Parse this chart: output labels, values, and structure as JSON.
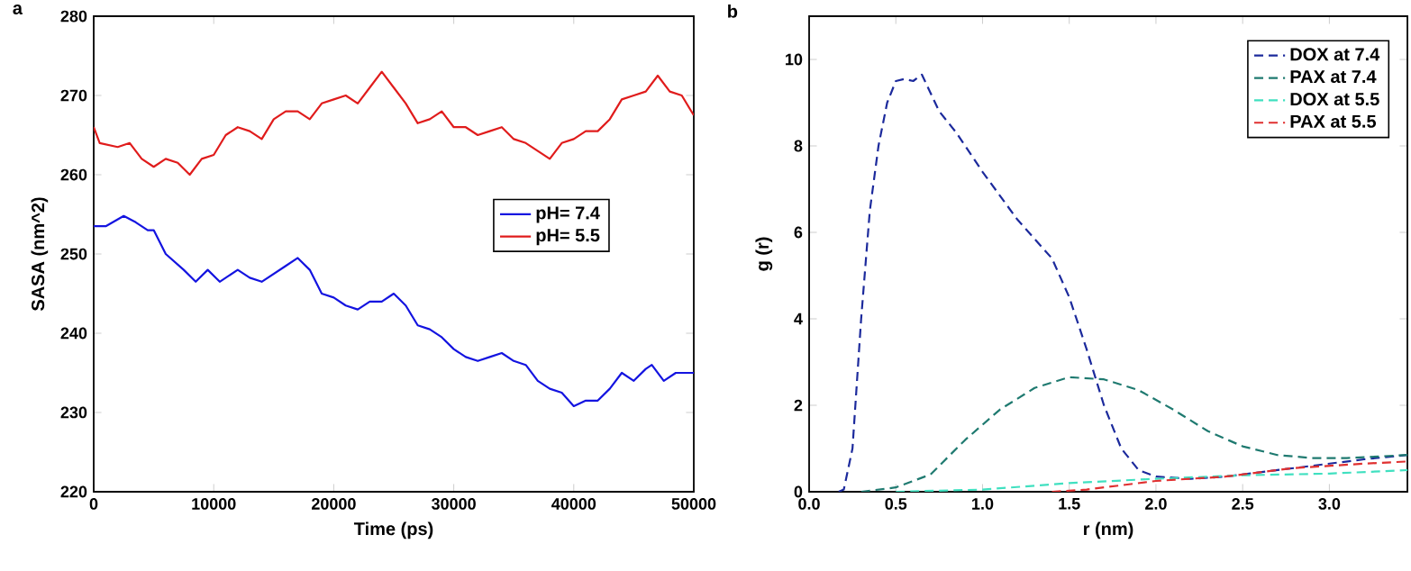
{
  "chart_data": [
    {
      "type": "line",
      "title": "a",
      "xlabel": "Time (ps)",
      "ylabel": "SASA (nm^2)",
      "xlim": [
        0,
        50000
      ],
      "ylim": [
        220,
        280
      ],
      "xticks": [
        0,
        10000,
        20000,
        30000,
        40000,
        50000
      ],
      "yticks": [
        220,
        230,
        240,
        250,
        260,
        270,
        280
      ],
      "legend": "right",
      "line_style": "solid",
      "series": [
        {
          "name": "pH= 7.4",
          "color": "#1414e0",
          "x": [
            0,
            1000,
            2500,
            3500,
            4500,
            5000,
            6000,
            7500,
            8500,
            9500,
            10500,
            12000,
            13000,
            14000,
            15000,
            16000,
            17000,
            18000,
            19000,
            20000,
            21000,
            22000,
            23000,
            24000,
            25000,
            26000,
            27000,
            28000,
            29000,
            30000,
            31000,
            32000,
            33000,
            34000,
            35000,
            36000,
            37000,
            38000,
            39000,
            40000,
            41000,
            42000,
            43000,
            44000,
            45000,
            46000,
            46500,
            47500,
            48500,
            49500,
            50000
          ],
          "values": [
            253.5,
            253.5,
            254.8,
            254,
            253,
            253,
            250,
            248,
            246.5,
            248,
            246.5,
            248,
            247,
            246.5,
            247.5,
            248.5,
            249.5,
            248,
            245,
            244.5,
            243.5,
            243,
            244,
            244,
            245,
            243.5,
            241,
            240.5,
            239.5,
            238,
            237,
            236.5,
            237,
            237.5,
            236.5,
            236,
            234,
            233,
            232.5,
            230.8,
            231.5,
            231.5,
            233,
            235,
            234,
            235.5,
            236,
            234,
            235,
            235,
            235
          ]
        },
        {
          "name": "pH= 5.5",
          "color": "#e01c1c",
          "x": [
            0,
            500,
            2000,
            3000,
            4000,
            5000,
            6000,
            7000,
            8000,
            9000,
            10000,
            11000,
            12000,
            13000,
            14000,
            15000,
            16000,
            17000,
            18000,
            19000,
            20000,
            21000,
            22000,
            23000,
            24000,
            25000,
            26000,
            27000,
            28000,
            29000,
            30000,
            31000,
            32000,
            33000,
            34000,
            35000,
            36000,
            37000,
            38000,
            39000,
            40000,
            41000,
            42000,
            43000,
            44000,
            45000,
            46000,
            47000,
            48000,
            49000,
            50000
          ],
          "values": [
            266,
            264,
            263.5,
            264,
            262,
            261,
            262,
            261.5,
            260,
            262,
            262.5,
            265,
            266,
            265.5,
            264.5,
            267,
            268,
            268,
            267,
            269,
            269.5,
            270,
            269,
            271,
            273,
            271,
            269,
            266.5,
            267,
            268,
            266,
            266,
            265,
            265.5,
            266,
            264.5,
            264,
            263,
            262,
            264,
            264.5,
            265.5,
            265.5,
            267,
            269.5,
            270,
            270.5,
            272.5,
            270.5,
            270,
            267.5
          ]
        }
      ]
    },
    {
      "type": "line",
      "title": "b",
      "xlabel": "r (nm)",
      "ylabel": "g (r)",
      "xlim": [
        0,
        3.45
      ],
      "ylim": [
        0,
        11
      ],
      "xticks": [
        {
          "value": 0,
          "label": "0.0"
        },
        {
          "value": 0.5,
          "label": "0.5"
        },
        {
          "value": 1,
          "label": "1.0"
        },
        {
          "value": 1.5,
          "label": "1.5"
        },
        {
          "value": 2,
          "label": "2.0"
        },
        {
          "value": 2.5,
          "label": "2.5"
        },
        {
          "value": 3,
          "label": "3.0"
        }
      ],
      "yticks": [
        0,
        2,
        4,
        6,
        8,
        10
      ],
      "legend": "top right",
      "line_style": "dashed",
      "series": [
        {
          "name": "DOX at 7.4",
          "color": "#1c2a9c",
          "x": [
            0.17,
            0.2,
            0.25,
            0.3,
            0.35,
            0.4,
            0.45,
            0.5,
            0.55,
            0.6,
            0.65,
            0.75,
            0.85,
            1.0,
            1.2,
            1.4,
            1.5,
            1.6,
            1.7,
            1.8,
            1.9,
            2.0,
            2.2,
            2.4,
            2.6,
            2.8,
            3.0,
            3.2,
            3.45
          ],
          "values": [
            0,
            0.05,
            1,
            4,
            6.5,
            8,
            9,
            9.5,
            9.55,
            9.5,
            9.65,
            8.8,
            8.3,
            7.4,
            6.3,
            5.4,
            4.5,
            3.3,
            2.0,
            1.0,
            0.5,
            0.35,
            0.3,
            0.35,
            0.45,
            0.55,
            0.65,
            0.75,
            0.85
          ]
        },
        {
          "name": "PAX at 7.4",
          "color": "#1f7a70",
          "x": [
            0.3,
            0.5,
            0.7,
            0.9,
            1.1,
            1.3,
            1.5,
            1.7,
            1.9,
            2.1,
            2.3,
            2.5,
            2.7,
            2.9,
            3.1,
            3.3,
            3.45
          ],
          "values": [
            0,
            0.1,
            0.4,
            1.2,
            1.9,
            2.4,
            2.65,
            2.6,
            2.35,
            1.9,
            1.4,
            1.05,
            0.85,
            0.78,
            0.78,
            0.82,
            0.85
          ]
        },
        {
          "name": "DOX at 5.5",
          "color": "#40e0c0",
          "x": [
            0.5,
            1.0,
            1.5,
            2.0,
            2.5,
            3.0,
            3.45
          ],
          "values": [
            0,
            0.05,
            0.2,
            0.3,
            0.38,
            0.42,
            0.5
          ]
        },
        {
          "name": "PAX at 5.5",
          "color": "#e03030",
          "x": [
            1.4,
            1.6,
            1.8,
            2.0,
            2.2,
            2.4,
            2.6,
            2.8,
            3.0,
            3.2,
            3.45
          ],
          "values": [
            0,
            0.05,
            0.15,
            0.25,
            0.3,
            0.35,
            0.45,
            0.55,
            0.6,
            0.65,
            0.7
          ]
        }
      ]
    }
  ]
}
